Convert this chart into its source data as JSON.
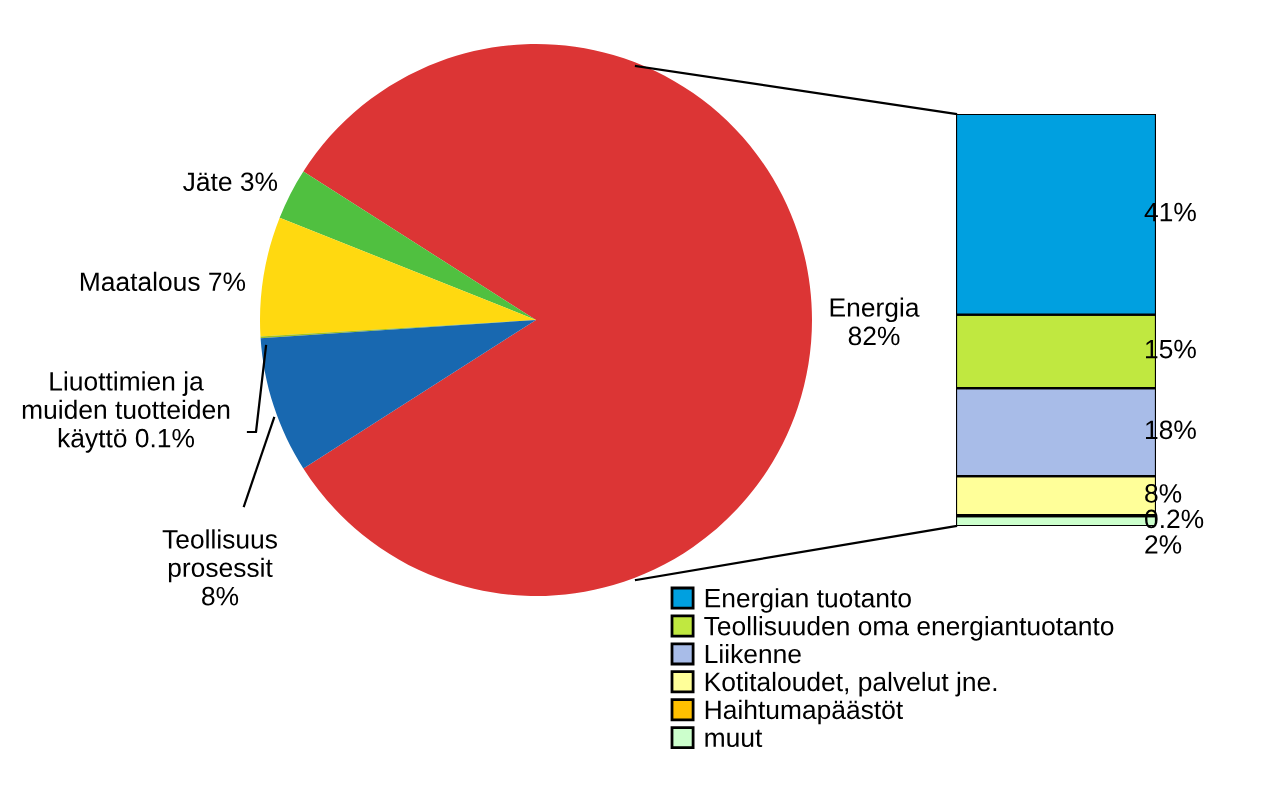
{
  "chart_data": [
    {
      "type": "pie",
      "categories": [
        "Energia",
        "Jäte",
        "Maatalous",
        "Liuottimien ja\nmuiden tuotteiden\nkäyttö",
        "Teollisuus\nprosessit"
      ],
      "values": [
        82,
        3,
        7,
        0.1,
        8
      ],
      "value_labels": [
        "82%",
        "3%",
        "7%",
        "0.1%",
        "8%"
      ],
      "colors": [
        "#dc3535",
        "#50c040",
        "#ffd910",
        "#a0c020",
        "#1868b0"
      ],
      "data_labels": true,
      "legend": false
    },
    {
      "type": "bar",
      "stacked": true,
      "categories": [
        null
      ],
      "data_labels": true,
      "legend": "bottom",
      "series": [
        {
          "name": "muut",
          "color": "#ccffcc",
          "values": [
            2
          ],
          "value_labels": [
            "2%"
          ]
        },
        {
          "name": "Haihtumapäästöt",
          "color": "#ffc000",
          "values": [
            0.2
          ],
          "value_labels": [
            "0.2%"
          ]
        },
        {
          "name": "Kotitaloudet, palvelut jne.",
          "color": "#ffff99",
          "values": [
            8
          ],
          "value_labels": [
            "8%"
          ]
        },
        {
          "name": "Liikenne",
          "color": "#a8bce8",
          "values": [
            18
          ],
          "value_labels": [
            "18%"
          ]
        },
        {
          "name": "Teollisuuden oma energiantuotanto",
          "color": "#c0e840",
          "values": [
            15
          ],
          "value_labels": [
            "15%"
          ]
        },
        {
          "name": "Energian tuotanto",
          "color": "#00a0e0",
          "values": [
            41
          ],
          "value_labels": [
            "41%"
          ]
        }
      ]
    }
  ]
}
